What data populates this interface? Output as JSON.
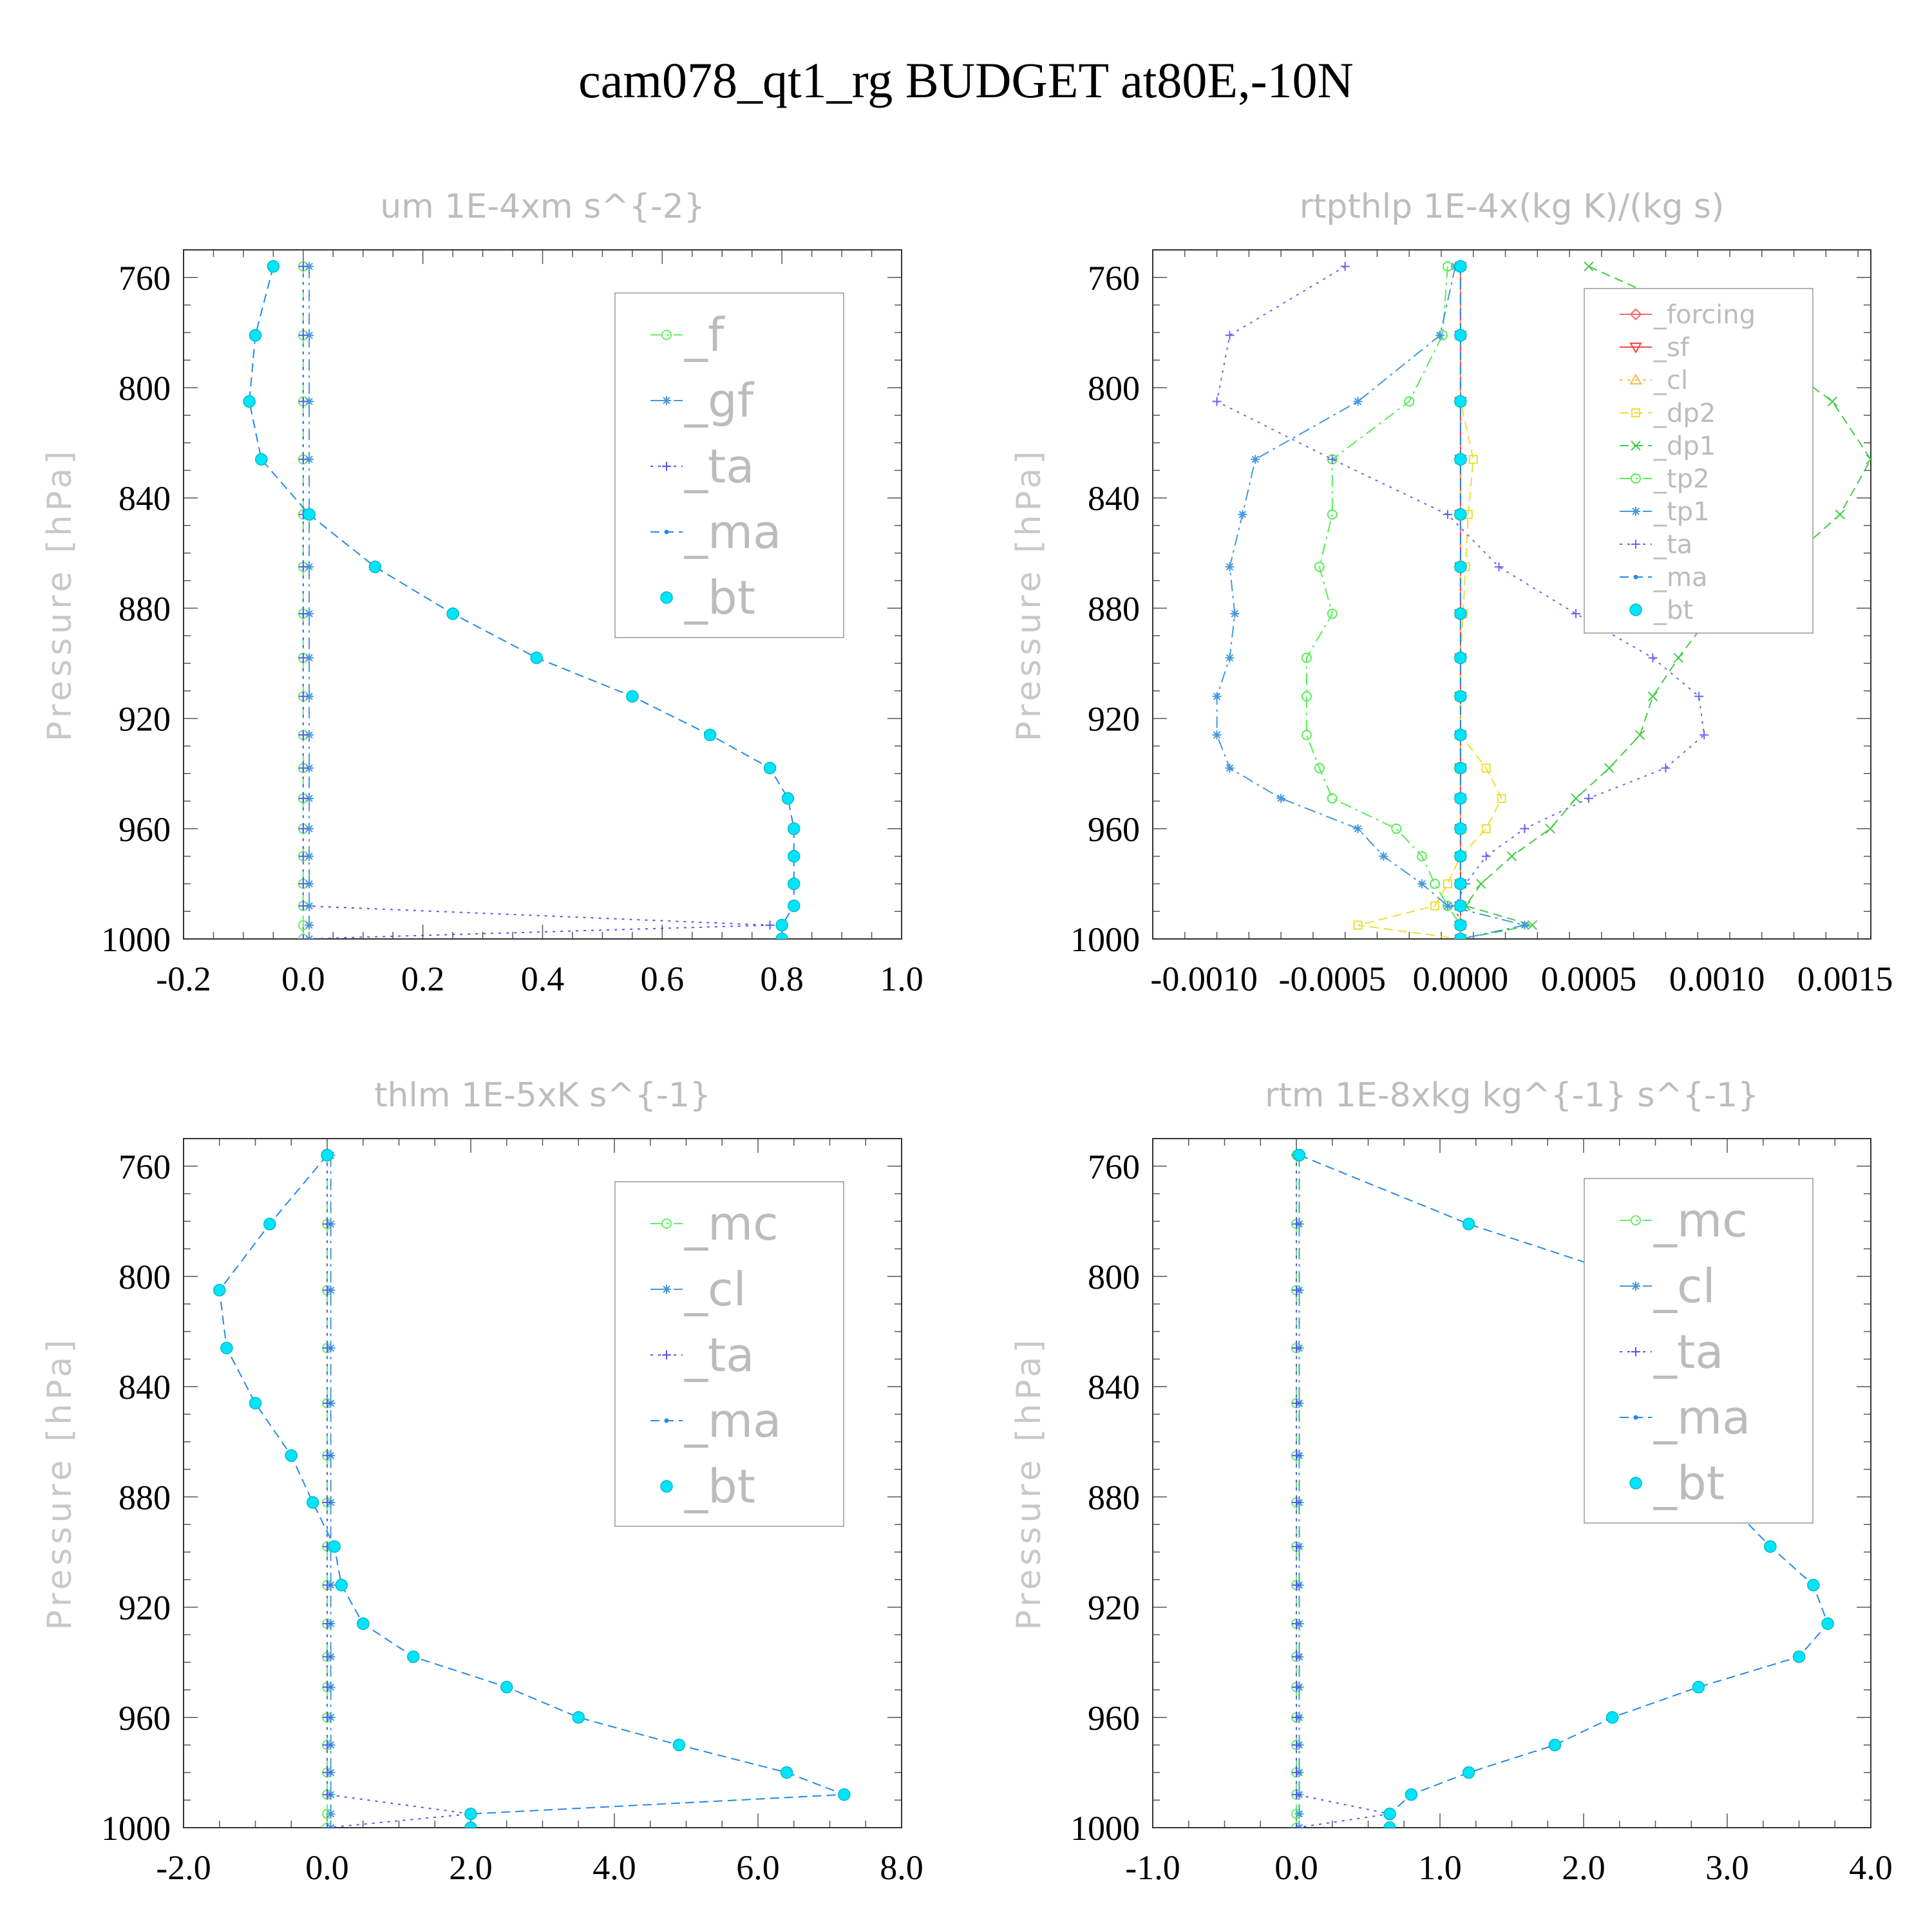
{
  "title": "cam078_qt1_rg  BUDGET at80E,-10N",
  "chart_data": [
    {
      "type": "line",
      "title": "um  1E-4xm s^{-2}",
      "ylabel": "Pressure [hPa]",
      "xlabel": "",
      "xlim": [
        -0.2,
        1.0
      ],
      "ylim": [
        1000,
        750
      ],
      "xticks": [
        "-0.2",
        "0.0",
        "0.2",
        "0.4",
        "0.6",
        "0.8",
        "1.0"
      ],
      "yticks": [
        "760",
        "800",
        "840",
        "880",
        "920",
        "960",
        "1000"
      ],
      "legend_position": "top-right",
      "y": [
        756,
        781,
        805,
        826,
        846,
        865,
        882,
        898,
        912,
        926,
        938,
        949,
        960,
        970,
        980,
        988,
        995,
        1000
      ],
      "series": [
        {
          "name": "_f",
          "color": "#66ee66",
          "marker": "circle",
          "dash": "dashdot",
          "values": [
            0,
            0,
            0,
            0,
            0,
            0,
            0,
            0,
            0,
            0,
            0,
            0,
            0,
            0,
            0,
            0,
            0,
            0
          ]
        },
        {
          "name": "_gf",
          "color": "#4499dd",
          "marker": "star",
          "dash": "dashdot",
          "values": [
            0.01,
            0.01,
            0.01,
            0.01,
            0.01,
            0.01,
            0.01,
            0.01,
            0.01,
            0.01,
            0.01,
            0.01,
            0.01,
            0.01,
            0.01,
            0.01,
            0.01,
            0.01
          ]
        },
        {
          "name": "_ta",
          "color": "#5555ee",
          "marker": "plus",
          "dash": "dotted",
          "values": [
            0,
            0,
            0,
            0,
            0,
            0,
            0,
            0,
            0,
            0,
            0,
            0,
            0,
            0,
            0,
            0,
            0.78,
            0
          ]
        },
        {
          "name": "_ma",
          "color": "#2288ee",
          "marker": "dot",
          "dash": "dashed",
          "values": [
            -0.05,
            -0.08,
            -0.09,
            -0.07,
            0.01,
            0.12,
            0.25,
            0.39,
            0.55,
            0.68,
            0.78,
            0.81,
            0.82,
            0.82,
            0.82,
            0.82,
            0.8,
            0.8
          ]
        },
        {
          "name": "_bt",
          "color": "#00e5ff",
          "marker": "bigdot",
          "dash": "none",
          "values": [
            -0.05,
            -0.08,
            -0.09,
            -0.07,
            0.01,
            0.12,
            0.25,
            0.39,
            0.55,
            0.68,
            0.78,
            0.81,
            0.82,
            0.82,
            0.82,
            0.82,
            0.8,
            0.8
          ]
        }
      ]
    },
    {
      "type": "line",
      "title": "rtpthlp  1E-4x(kg K)/(kg s)",
      "ylabel": "Pressure [hPa]",
      "xlabel": "",
      "xlim": [
        -0.0012,
        0.0016
      ],
      "ylim": [
        1000,
        750
      ],
      "xticks": [
        "-0.0010",
        "-0.0005",
        "0.0000",
        "0.0005",
        "0.0010",
        "0.0015"
      ],
      "yticks": [
        "760",
        "800",
        "840",
        "880",
        "920",
        "960",
        "1000"
      ],
      "legend_position": "top-right",
      "y": [
        756,
        781,
        805,
        826,
        846,
        865,
        882,
        898,
        912,
        926,
        938,
        949,
        960,
        970,
        980,
        988,
        995,
        1000
      ],
      "series": [
        {
          "name": "_forcing",
          "color": "#ff6666",
          "marker": "diamond",
          "dash": "solid",
          "values": [
            0,
            0,
            0,
            0,
            0,
            0,
            0,
            0,
            0,
            0,
            0,
            0,
            0,
            0,
            0,
            0,
            0,
            0
          ]
        },
        {
          "name": "_sf",
          "color": "#ff4444",
          "marker": "tri-down",
          "dash": "solid",
          "values": [
            0,
            0,
            0,
            0,
            0,
            0,
            0,
            0,
            0,
            0,
            0,
            0,
            0,
            0,
            0,
            0,
            0,
            0
          ]
        },
        {
          "name": "_cl",
          "color": "#ffbb44",
          "marker": "tri-up",
          "dash": "dotted",
          "values": [
            0,
            0,
            0,
            0,
            0,
            0,
            0,
            0,
            0,
            0,
            0,
            0,
            0,
            0,
            0,
            0,
            0,
            0
          ]
        },
        {
          "name": "_dp2",
          "color": "#eedd33",
          "marker": "square",
          "dash": "dashed",
          "values": [
            0,
            0,
            0,
            5e-05,
            3e-05,
            2e-05,
            1e-05,
            0,
            0,
            0,
            0.0001,
            0.00016,
            0.0001,
            0,
            -5e-05,
            -0.0001,
            -0.0004,
            0
          ]
        },
        {
          "name": "_dp1",
          "color": "#44cc44",
          "marker": "x",
          "dash": "dashed",
          "values": [
            0.0005,
            0.0011,
            0.00145,
            0.0016,
            0.00148,
            0.00125,
            0.00098,
            0.00085,
            0.00075,
            0.0007,
            0.00058,
            0.00045,
            0.00035,
            0.0002,
            8e-05,
            2e-05,
            0.00028,
            0
          ]
        },
        {
          "name": "_tp2",
          "color": "#55ee55",
          "marker": "circle",
          "dash": "dashdot",
          "values": [
            -5e-05,
            -7e-05,
            -0.0002,
            -0.0005,
            -0.0005,
            -0.00055,
            -0.0005,
            -0.0006,
            -0.0006,
            -0.0006,
            -0.00055,
            -0.0005,
            -0.00025,
            -0.00015,
            -0.0001,
            -5e-05,
            0,
            0
          ]
        },
        {
          "name": "_tp1",
          "color": "#4499dd",
          "marker": "star",
          "dash": "dashdot",
          "values": [
            -2e-05,
            -8e-05,
            -0.0004,
            -0.0008,
            -0.00085,
            -0.0009,
            -0.00088,
            -0.0009,
            -0.00095,
            -0.00095,
            -0.0009,
            -0.0007,
            -0.0004,
            -0.0003,
            -0.00015,
            -5e-05,
            0.00025,
            0
          ]
        },
        {
          "name": "_ta",
          "color": "#6666ee",
          "marker": "plus",
          "dash": "dotted",
          "values": [
            -0.00045,
            -0.0009,
            -0.00095,
            -0.0005,
            -5e-05,
            0.00015,
            0.00045,
            0.00075,
            0.00093,
            0.00095,
            0.0008,
            0.0005,
            0.00025,
            0.0001,
            2e-05,
            -2e-05,
            0,
            0
          ]
        },
        {
          "name": "_ma",
          "color": "#2288ee",
          "marker": "dot",
          "dash": "dashed",
          "values": [
            0,
            0,
            0,
            0,
            0,
            0,
            0,
            0,
            0,
            0,
            0,
            0,
            0,
            0,
            0,
            0,
            0,
            0
          ]
        },
        {
          "name": "_bt",
          "color": "#00e5ff",
          "marker": "bigdot",
          "dash": "none",
          "values": [
            0,
            0,
            0,
            0,
            0,
            0,
            0,
            0,
            0,
            0,
            0,
            0,
            0,
            0,
            0,
            0,
            0,
            0
          ]
        }
      ]
    },
    {
      "type": "line",
      "title": "thlm  1E-5xK s^{-1}",
      "ylabel": "Pressure [hPa]",
      "xlabel": "",
      "xlim": [
        -2.0,
        8.0
      ],
      "ylim": [
        1000,
        750
      ],
      "xticks": [
        "-2.0",
        "0.0",
        "2.0",
        "4.0",
        "6.0",
        "8.0"
      ],
      "yticks": [
        "760",
        "800",
        "840",
        "880",
        "920",
        "960",
        "1000"
      ],
      "legend_position": "top-right",
      "y": [
        756,
        781,
        805,
        826,
        846,
        865,
        882,
        898,
        912,
        926,
        938,
        949,
        960,
        970,
        980,
        988,
        995,
        1000
      ],
      "series": [
        {
          "name": "_mc",
          "color": "#66ee66",
          "marker": "circle",
          "dash": "dashdot",
          "values": [
            0,
            0,
            0,
            0,
            0,
            0,
            0,
            0,
            0,
            0,
            0,
            0,
            0,
            0,
            0,
            0,
            0,
            0
          ]
        },
        {
          "name": "_cl",
          "color": "#4499dd",
          "marker": "star",
          "dash": "dashdot",
          "values": [
            0.05,
            0.05,
            0.05,
            0.05,
            0.05,
            0.05,
            0.05,
            0.05,
            0.05,
            0.05,
            0.05,
            0.05,
            0.05,
            0.05,
            0.05,
            0.05,
            0.05,
            0.05
          ]
        },
        {
          "name": "_ta",
          "color": "#5555ee",
          "marker": "plus",
          "dash": "dotted",
          "values": [
            0,
            0,
            0,
            0,
            0,
            0,
            0,
            0,
            0,
            0,
            0,
            0,
            0,
            0,
            0,
            0,
            2.0,
            0
          ]
        },
        {
          "name": "_ma",
          "color": "#2288ee",
          "marker": "dot",
          "dash": "dashed",
          "values": [
            0,
            -0.8,
            -1.5,
            -1.4,
            -1.0,
            -0.5,
            -0.2,
            0.1,
            0.2,
            0.5,
            1.2,
            2.5,
            3.5,
            4.9,
            6.4,
            7.2,
            2.0,
            2.0
          ]
        },
        {
          "name": "_bt",
          "color": "#00e5ff",
          "marker": "bigdot",
          "dash": "none",
          "values": [
            0,
            -0.8,
            -1.5,
            -1.4,
            -1.0,
            -0.5,
            -0.2,
            0.1,
            0.2,
            0.5,
            1.2,
            2.5,
            3.5,
            4.9,
            6.4,
            7.2,
            2.0,
            2.0
          ]
        }
      ]
    },
    {
      "type": "line",
      "title": "rtm  1E-8xkg kg^{-1} s^{-1}",
      "ylabel": "Pressure [hPa]",
      "xlabel": "",
      "xlim": [
        -1.0,
        4.0
      ],
      "ylim": [
        1000,
        750
      ],
      "xticks": [
        "-1.0",
        "0.0",
        "1.0",
        "2.0",
        "3.0",
        "4.0"
      ],
      "yticks": [
        "760",
        "800",
        "840",
        "880",
        "920",
        "960",
        "1000"
      ],
      "legend_position": "top-right",
      "y": [
        756,
        781,
        805,
        826,
        846,
        865,
        882,
        898,
        912,
        926,
        938,
        949,
        960,
        970,
        980,
        988,
        995,
        1000
      ],
      "series": [
        {
          "name": "_mc",
          "color": "#66ee66",
          "marker": "circle",
          "dash": "dashdot",
          "values": [
            0,
            0,
            0,
            0,
            0,
            0,
            0,
            0,
            0,
            0,
            0,
            0,
            0,
            0,
            0,
            0,
            0,
            0
          ]
        },
        {
          "name": "_cl",
          "color": "#4499dd",
          "marker": "star",
          "dash": "dashdot",
          "values": [
            0.02,
            0.02,
            0.02,
            0.02,
            0.02,
            0.02,
            0.02,
            0.02,
            0.02,
            0.02,
            0.02,
            0.02,
            0.02,
            0.02,
            0.02,
            0.02,
            0.02,
            0.02
          ]
        },
        {
          "name": "_ta",
          "color": "#5555ee",
          "marker": "plus",
          "dash": "dotted",
          "values": [
            0,
            0,
            0,
            0,
            0,
            0,
            0,
            0,
            0,
            0,
            0,
            0,
            0,
            0,
            0,
            0,
            0.65,
            0
          ]
        },
        {
          "name": "_ma",
          "color": "#2288ee",
          "marker": "dot",
          "dash": "dashed",
          "values": [
            0.02,
            1.2,
            2.6,
            3.2,
            3.0,
            2.9,
            3.0,
            3.3,
            3.6,
            3.7,
            3.5,
            2.8,
            2.2,
            1.8,
            1.2,
            0.8,
            0.65,
            0.65
          ]
        },
        {
          "name": "_bt",
          "color": "#00e5ff",
          "marker": "bigdot",
          "dash": "none",
          "values": [
            0.02,
            1.2,
            2.6,
            3.2,
            3.0,
            2.9,
            3.0,
            3.3,
            3.6,
            3.7,
            3.5,
            2.8,
            2.2,
            1.8,
            1.2,
            0.8,
            0.65,
            0.65
          ]
        }
      ]
    }
  ]
}
